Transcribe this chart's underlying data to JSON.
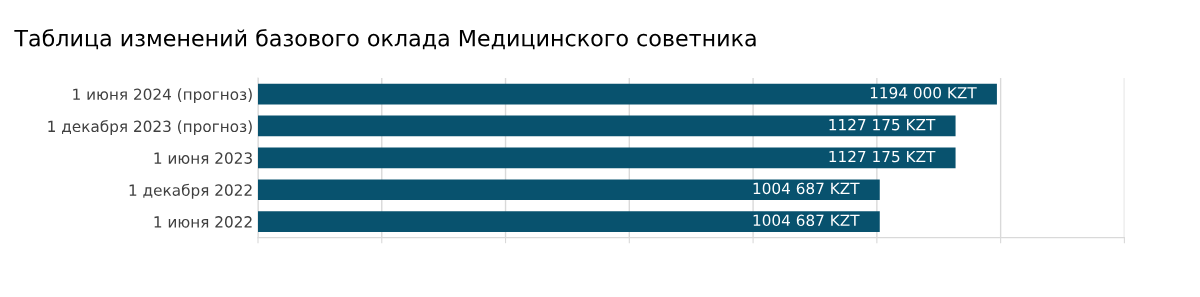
{
  "chart_data": {
    "type": "bar",
    "orientation": "horizontal",
    "title": "Таблица изменений базового оклада Медицинского советника",
    "categories": [
      "1 июня 2024 (прогноз)",
      "1 декабря 2023 (прогноз)",
      "1 июня 2023",
      "1 декабря 2022",
      "1 июня 2022"
    ],
    "values": [
      1194000,
      1127175,
      1127175,
      1004687,
      1004687
    ],
    "value_labels": [
      "1194 000 KZT",
      "1127 175 KZT",
      "1127 175 KZT",
      "1004 687 KZT",
      "1004 687 KZT"
    ],
    "color": "#08526e",
    "xlim": [
      0,
      1400000
    ],
    "xticks": [
      {
        "value": 0,
        "label": null
      },
      {
        "value": 200000,
        "label": null
      },
      {
        "value": 400000,
        "label": null
      },
      {
        "value": 600000,
        "label": null
      },
      {
        "value": 800000,
        "label": null
      },
      {
        "value": 1000000,
        "label": null
      },
      {
        "value": 1200000,
        "label": null
      },
      {
        "value": 1400000,
        "label": null
      }
    ],
    "grid": "x",
    "tick_labels": "y"
  }
}
